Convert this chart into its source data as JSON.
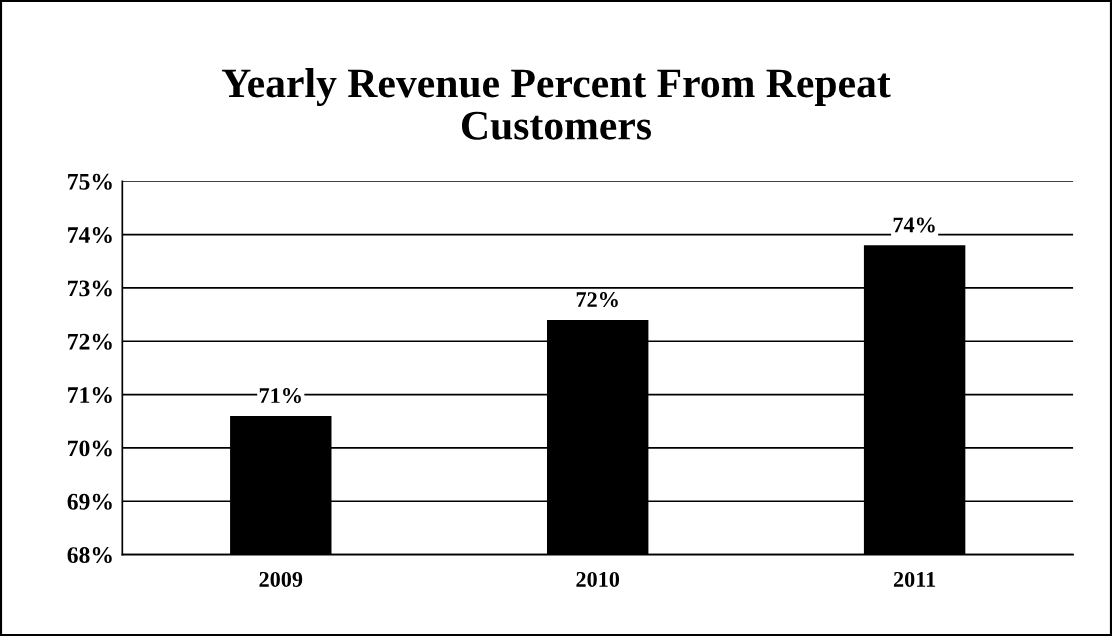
{
  "chart_data": {
    "type": "bar",
    "title": "Yearly Revenue Percent From Repeat\nCustomers",
    "categories": [
      "2009",
      "2010",
      "2011"
    ],
    "values": [
      70.6,
      72.4,
      73.8
    ],
    "value_labels": [
      "71%",
      "72%",
      "74%"
    ],
    "color": "#000000",
    "ylim": [
      68,
      75
    ],
    "yticks": [
      {
        "value": 68,
        "label": "68%"
      },
      {
        "value": 69,
        "label": "69%"
      },
      {
        "value": 70,
        "label": "70%"
      },
      {
        "value": 71,
        "label": "71%"
      },
      {
        "value": 72,
        "label": "72%"
      },
      {
        "value": 73,
        "label": "73%"
      },
      {
        "value": 74,
        "label": "74%"
      },
      {
        "value": 75,
        "label": "75%"
      }
    ],
    "grid": "y"
  }
}
